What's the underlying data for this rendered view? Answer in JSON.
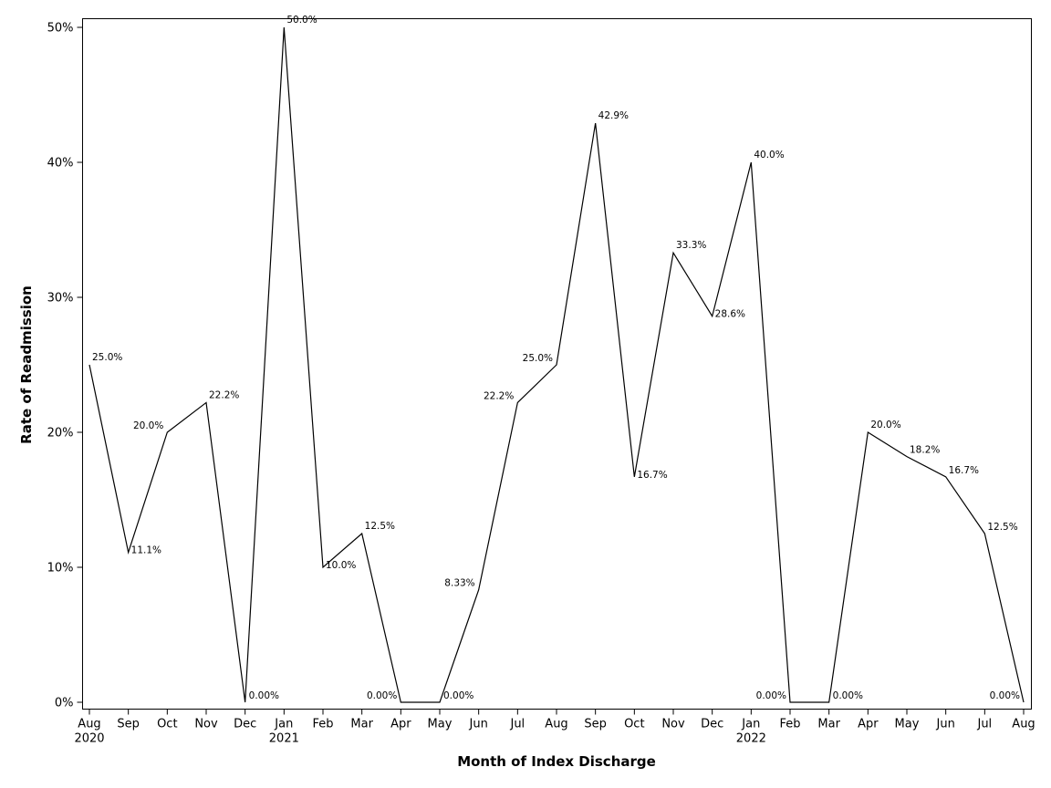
{
  "chart_data": {
    "type": "line",
    "xlabel": "Month of Index Discharge",
    "ylabel": "Rate of Readmission",
    "ylim": [
      0,
      50
    ],
    "y_ticks": [
      0,
      10,
      20,
      30,
      40,
      50
    ],
    "y_tick_labels": [
      "0%",
      "10%",
      "20%",
      "30%",
      "40%",
      "50%"
    ],
    "grid": false,
    "legend": "none",
    "line_color": "#000000",
    "x": [
      "2020-08",
      "2020-09",
      "2020-10",
      "2020-11",
      "2020-12",
      "2021-01",
      "2021-02",
      "2021-03",
      "2021-04",
      "2021-05",
      "2021-06",
      "2021-07",
      "2021-08",
      "2021-09",
      "2021-10",
      "2021-11",
      "2021-12",
      "2022-01",
      "2022-02",
      "2022-03",
      "2022-04",
      "2022-05",
      "2022-06",
      "2022-07",
      "2022-08"
    ],
    "x_tick_labels": [
      "Aug",
      "Sep",
      "Oct",
      "Nov",
      "Dec",
      "Jan",
      "Feb",
      "Mar",
      "Apr",
      "May",
      "Jun",
      "Jul",
      "Aug",
      "Sep",
      "Oct",
      "Nov",
      "Dec",
      "Jan",
      "Feb",
      "Mar",
      "Apr",
      "May",
      "Jun",
      "Jul",
      "Aug"
    ],
    "x_year_labels": {
      "0": "2020",
      "5": "2021",
      "17": "2022"
    },
    "values": [
      25.0,
      11.1,
      20.0,
      22.2,
      0.0,
      50.0,
      10.0,
      12.5,
      0.0,
      0.0,
      8.33,
      22.2,
      25.0,
      42.9,
      16.7,
      33.3,
      28.6,
      40.0,
      0.0,
      0.0,
      20.0,
      18.2,
      16.7,
      12.5,
      0.0
    ],
    "data_labels": [
      "25.0%",
      "11.1%",
      "20.0%",
      "22.2%",
      "0.00%",
      "50.0%",
      "10.0%",
      "12.5%",
      "0.00%",
      "0.00%",
      "8.33%",
      "22.2%",
      "25.0%",
      "42.9%",
      "16.7%",
      "33.3%",
      "28.6%",
      "40.0%",
      "0.00%",
      "0.00%",
      "20.0%",
      "18.2%",
      "16.7%",
      "12.5%",
      "0.00%"
    ]
  }
}
